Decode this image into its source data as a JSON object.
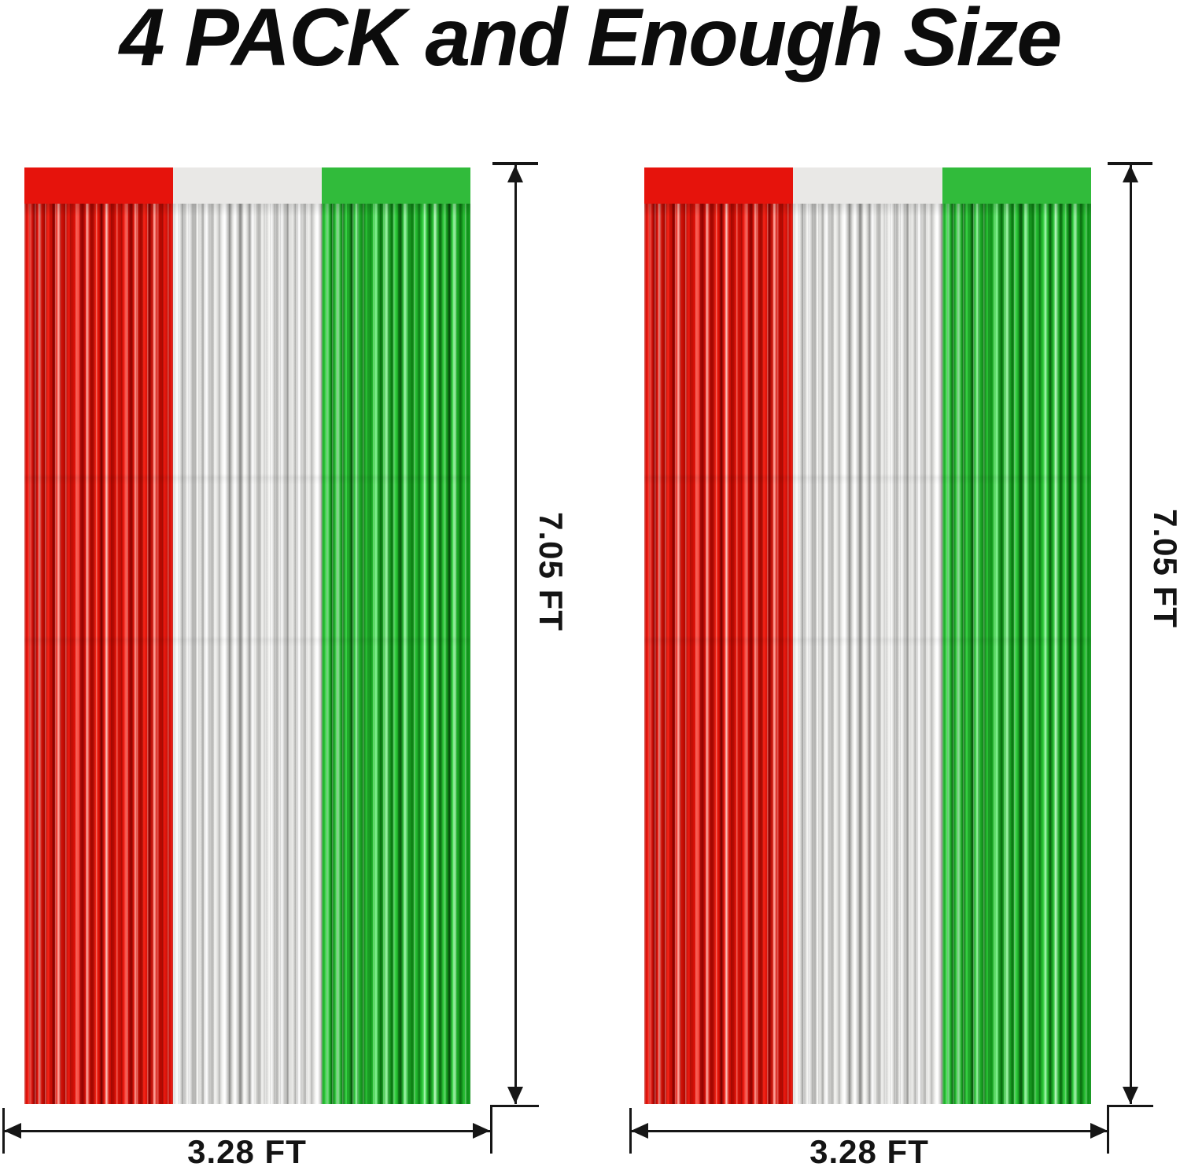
{
  "title": "4 PACK and Enough Size",
  "colors": {
    "red": "#e6130c",
    "silver": "#e9e8e6",
    "green": "#31bb3b",
    "annotation": "#161616",
    "background": "#ffffff"
  },
  "curtains": [
    {
      "position": "left",
      "stripes": [
        "red",
        "silver",
        "green"
      ],
      "height_label": "7.05 FT",
      "width_label": "3.28 FT"
    },
    {
      "position": "right",
      "stripes": [
        "red",
        "silver",
        "green"
      ],
      "height_label": "7.05 FT",
      "width_label": "3.28 FT"
    }
  ]
}
